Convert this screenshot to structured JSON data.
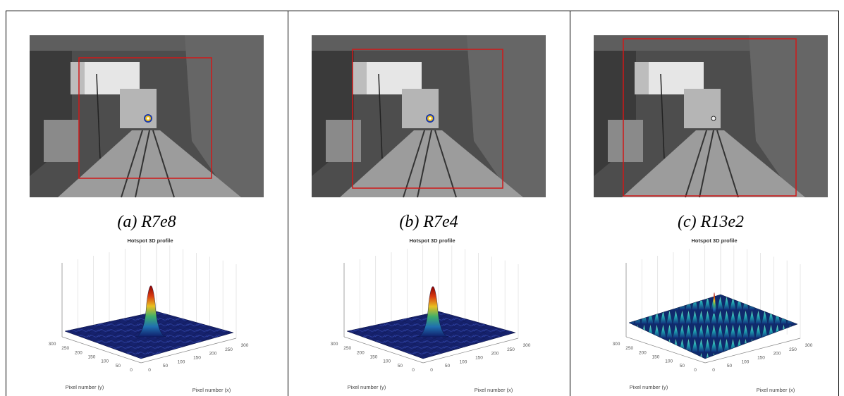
{
  "panels": [
    {
      "caption": "(a) R7e8",
      "plot_title": "Hotspot 3D profile",
      "y_axis_label": "Pixel number (y)",
      "x_axis_label": "Pixel number (x)",
      "y_ticks": [
        "300",
        "250",
        "200",
        "150",
        "100",
        "50",
        "0"
      ],
      "x_ticks": [
        "0",
        "50",
        "100",
        "150",
        "200",
        "250",
        "300"
      ]
    },
    {
      "caption": "(b) R7e4",
      "plot_title": "Hotspot 3D profile",
      "y_axis_label": "Pixel number (y)",
      "x_axis_label": "Pixel number (x)",
      "y_ticks": [
        "300",
        "250",
        "200",
        "150",
        "100",
        "50",
        "0"
      ],
      "x_ticks": [
        "0",
        "50",
        "100",
        "150",
        "200",
        "250",
        "300"
      ]
    },
    {
      "caption": "(c) R13e2",
      "plot_title": "Hotspot 3D profile",
      "y_axis_label": "Pixel number (y)",
      "x_axis_label": "Pixel number (x)",
      "y_ticks": [
        "300",
        "250",
        "200",
        "150",
        "100",
        "50",
        "0"
      ],
      "x_ticks": [
        "0",
        "50",
        "100",
        "150",
        "200",
        "250",
        "300"
      ]
    }
  ]
}
